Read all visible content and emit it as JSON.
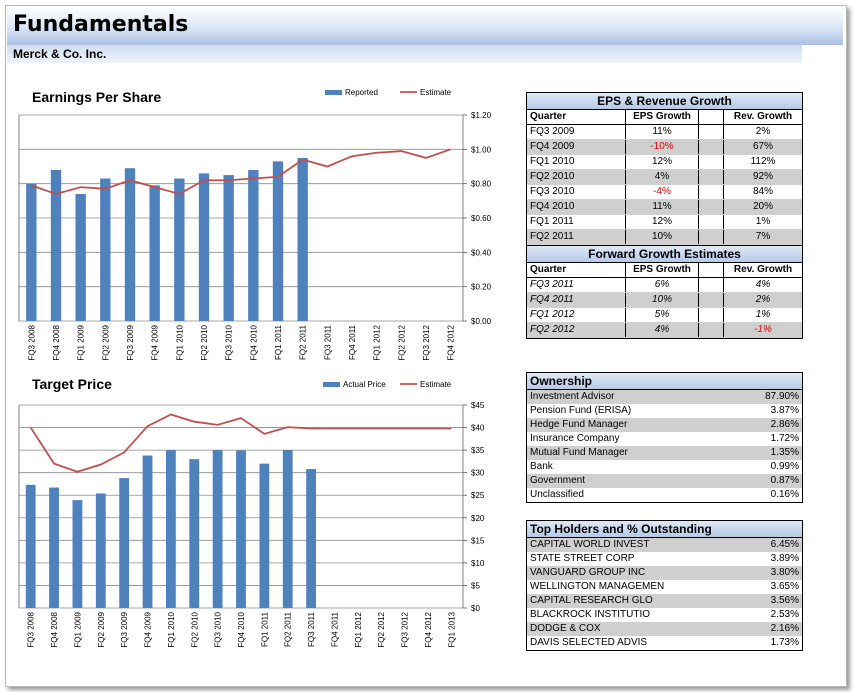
{
  "header": {
    "title": "Fundamentals",
    "company": "Merck & Co. Inc."
  },
  "chart_data": [
    {
      "type": "bar",
      "title": "Earnings Per Share",
      "categories": [
        "FQ3 2008",
        "FQ4 2008",
        "FQ1 2009",
        "FQ2 2009",
        "FQ3 2009",
        "FQ4 2009",
        "FQ1 2010",
        "FQ2 2010",
        "FQ3 2010",
        "FQ4 2010",
        "FQ1 2011",
        "FQ2 2011",
        "FQ3 2011",
        "FQ4 2011",
        "FQ1 2012",
        "FQ2 2012",
        "FQ3 2012",
        "FQ4 2012"
      ],
      "series": [
        {
          "name": "Reported",
          "type": "bar",
          "values": [
            0.8,
            0.88,
            0.74,
            0.83,
            0.89,
            0.79,
            0.83,
            0.86,
            0.85,
            0.88,
            0.93,
            0.95,
            null,
            null,
            null,
            null,
            null,
            null
          ]
        },
        {
          "name": "Estimate",
          "type": "line",
          "values": [
            0.79,
            0.74,
            0.78,
            0.77,
            0.82,
            0.78,
            0.74,
            0.82,
            0.82,
            0.83,
            0.84,
            0.94,
            0.9,
            0.96,
            0.98,
            0.99,
            0.95,
            1.0
          ]
        }
      ],
      "ylim": [
        0,
        1.2
      ],
      "yticks": [
        "$0.00",
        "$0.20",
        "$0.40",
        "$0.60",
        "$0.80",
        "$1.00",
        "$1.20"
      ],
      "grid": true,
      "legend": "top-right"
    },
    {
      "type": "bar",
      "title": "Target Price",
      "categories": [
        "FQ3 2008",
        "FQ4 2008",
        "FQ1 2009",
        "FQ2 2009",
        "FQ3 2009",
        "FQ4 2009",
        "FQ1 2010",
        "FQ2 2010",
        "FQ3 2010",
        "FQ4 2010",
        "FQ1 2011",
        "FQ2 2011",
        "FQ3 2011",
        "FQ4 2011",
        "FQ1 2012",
        "FQ2 2012",
        "FQ3 2012",
        "FQ4 2012",
        "FQ1 2013"
      ],
      "series": [
        {
          "name": "Actual Price",
          "type": "bar",
          "values": [
            27.3,
            26.7,
            23.9,
            25.4,
            28.8,
            33.8,
            35.0,
            33.0,
            35.0,
            34.9,
            32.0,
            35.0,
            30.8,
            null,
            null,
            null,
            null,
            null,
            null
          ]
        },
        {
          "name": "Estimate",
          "type": "line",
          "values": [
            40,
            32,
            30.2,
            31.8,
            34.5,
            40.3,
            42.9,
            41.3,
            40.6,
            42.1,
            38.6,
            40.1,
            39.8,
            39.8,
            39.8,
            39.8,
            39.8,
            39.8,
            39.8
          ]
        }
      ],
      "ylim": [
        0,
        45
      ],
      "yticks": [
        "$0",
        "$5",
        "$10",
        "$15",
        "$20",
        "$25",
        "$30",
        "$35",
        "$40",
        "$45"
      ],
      "grid": true,
      "legend": "top-right"
    }
  ],
  "growth": {
    "title": "EPS & Revenue Growth",
    "columns": [
      "Quarter",
      "EPS Growth",
      "Rev. Growth"
    ],
    "rows": [
      {
        "q": "FQ3 2009",
        "eps": "11%",
        "rev": "2%"
      },
      {
        "q": "FQ4 2009",
        "eps": "-10%",
        "rev": "67%"
      },
      {
        "q": "FQ1 2010",
        "eps": "12%",
        "rev": "112%"
      },
      {
        "q": "FQ2 2010",
        "eps": "4%",
        "rev": "92%"
      },
      {
        "q": "FQ3 2010",
        "eps": "-4%",
        "rev": "84%"
      },
      {
        "q": "FQ4 2010",
        "eps": "11%",
        "rev": "20%"
      },
      {
        "q": "FQ1 2011",
        "eps": "12%",
        "rev": "1%"
      },
      {
        "q": "FQ2 2011",
        "eps": "10%",
        "rev": "7%"
      }
    ]
  },
  "forward": {
    "title": "Forward Growth Estimates",
    "columns": [
      "Quarter",
      "EPS Growth",
      "Rev. Growth"
    ],
    "rows": [
      {
        "q": "FQ3 2011",
        "eps": "6%",
        "rev": "4%"
      },
      {
        "q": "FQ4 2011",
        "eps": "10%",
        "rev": "2%"
      },
      {
        "q": "FQ1 2012",
        "eps": "5%",
        "rev": "1%"
      },
      {
        "q": "FQ2 2012",
        "eps": "4%",
        "rev": "-1%"
      }
    ]
  },
  "ownership": {
    "title": "Ownership",
    "rows": [
      {
        "name": "Investment Advisor",
        "value": "87.90%"
      },
      {
        "name": "Pension Fund (ERISA)",
        "value": "3.87%"
      },
      {
        "name": "Hedge Fund Manager",
        "value": "2.86%"
      },
      {
        "name": "Insurance Company",
        "value": "1.72%"
      },
      {
        "name": "Mutual Fund Manager",
        "value": "1.35%"
      },
      {
        "name": "Bank",
        "value": "0.99%"
      },
      {
        "name": "Government",
        "value": "0.87%"
      },
      {
        "name": "Unclassified",
        "value": "0.16%"
      }
    ]
  },
  "holders": {
    "title": "Top Holders and % Outstanding",
    "rows": [
      {
        "name": "CAPITAL WORLD INVEST",
        "value": "6.45%"
      },
      {
        "name": "STATE STREET CORP",
        "value": "3.89%"
      },
      {
        "name": "VANGUARD GROUP INC",
        "value": "3.80%"
      },
      {
        "name": "WELLINGTON MANAGEMEN",
        "value": "3.65%"
      },
      {
        "name": "CAPITAL RESEARCH GLO",
        "value": "3.56%"
      },
      {
        "name": "BLACKROCK INSTITUTIO",
        "value": "2.53%"
      },
      {
        "name": "DODGE & COX",
        "value": "2.16%"
      },
      {
        "name": "DAVIS SELECTED ADVIS",
        "value": "1.73%"
      }
    ]
  },
  "colors": {
    "bar": "#4f81bd",
    "line": "#c0504d",
    "negative": "#e00000",
    "gray_row": "#cfcfcf"
  }
}
